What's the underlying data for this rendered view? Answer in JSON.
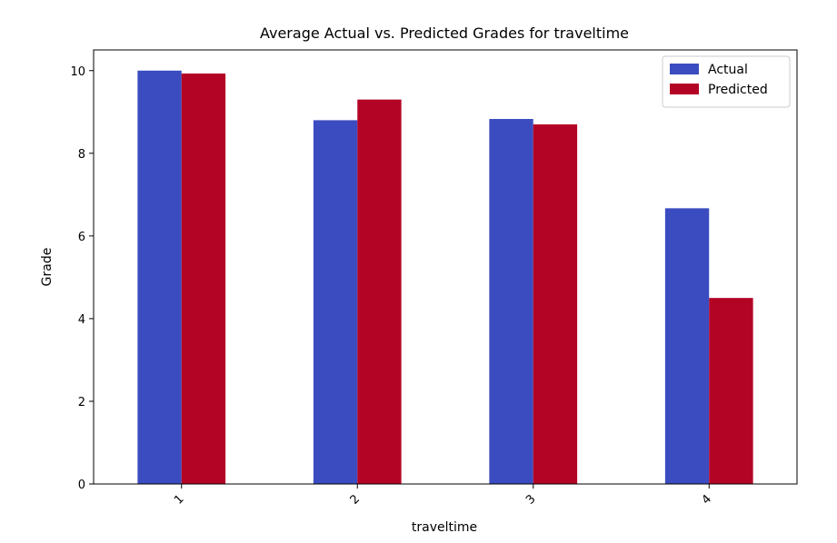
{
  "chart_data": {
    "type": "bar",
    "title": "Average Actual vs. Predicted Grades for traveltime",
    "xlabel": "traveltime",
    "ylabel": "Grade",
    "categories": [
      "1",
      "2",
      "3",
      "4"
    ],
    "ylim": [
      0,
      10.5
    ],
    "yticks": [
      0,
      2,
      4,
      6,
      8,
      10
    ],
    "grid": false,
    "legend_position": "top-right",
    "series": [
      {
        "name": "Actual",
        "color": "#3b4cc0",
        "values": [
          10.0,
          8.8,
          8.83,
          6.67
        ]
      },
      {
        "name": "Predicted",
        "color": "#b40426",
        "values": [
          9.93,
          9.3,
          8.7,
          4.5
        ]
      }
    ]
  }
}
